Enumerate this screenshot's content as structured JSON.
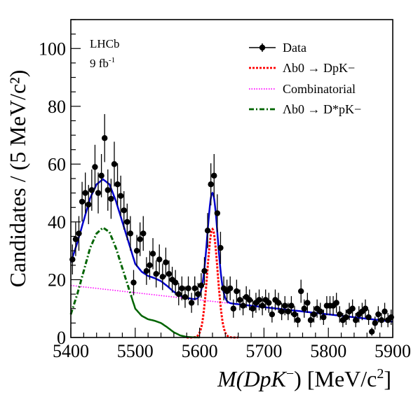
{
  "chart_data": {
    "type": "scatter",
    "experiment_label": "LHCb",
    "luminosity_label": "9 fb",
    "luminosity_exponent": "-1",
    "xlabel": {
      "prefix": "M(DpK",
      "sup": "−",
      "suffix": ") [MeV/c",
      "sup2": "2",
      "end": "]"
    },
    "ylabel": "Candidates / (5 MeV/c²)",
    "xlim": [
      5400,
      5900
    ],
    "ylim": [
      0,
      110
    ],
    "x_ticks": [
      5400,
      5500,
      5600,
      5700,
      5800,
      5900
    ],
    "y_ticks": [
      0,
      20,
      40,
      60,
      80,
      100
    ],
    "legend_position": "top-right",
    "legend": [
      {
        "key": "data",
        "label": "Data",
        "color": "#000000",
        "style": "marker"
      },
      {
        "key": "signal",
        "label": "Λb0 → DpK−",
        "color": "#ff0000",
        "style": "dotted"
      },
      {
        "key": "comb",
        "label": "Combinatorial",
        "color": "#ff00ff",
        "style": "dotted"
      },
      {
        "key": "dstar",
        "label": "Λb0 → D*pK−",
        "color": "#006400",
        "style": "dashdot"
      }
    ],
    "colors": {
      "total": "#0000cc",
      "signal": "#ff0000",
      "combinatorial": "#ff00ff",
      "dstar": "#006400",
      "data": "#000000"
    },
    "data_points": [
      {
        "x": 5402.5,
        "y": 27
      },
      {
        "x": 5407.5,
        "y": 34
      },
      {
        "x": 5412.5,
        "y": 36
      },
      {
        "x": 5417.5,
        "y": 47
      },
      {
        "x": 5422.5,
        "y": 50
      },
      {
        "x": 5427.5,
        "y": 46
      },
      {
        "x": 5432.5,
        "y": 51
      },
      {
        "x": 5437.5,
        "y": 59
      },
      {
        "x": 5442.5,
        "y": 50
      },
      {
        "x": 5447.5,
        "y": 56
      },
      {
        "x": 5452.5,
        "y": 69
      },
      {
        "x": 5457.5,
        "y": 51
      },
      {
        "x": 5462.5,
        "y": 48
      },
      {
        "x": 5467.5,
        "y": 60
      },
      {
        "x": 5472.5,
        "y": 53
      },
      {
        "x": 5477.5,
        "y": 49
      },
      {
        "x": 5482.5,
        "y": 44
      },
      {
        "x": 5487.5,
        "y": 40
      },
      {
        "x": 5492.5,
        "y": 36
      },
      {
        "x": 5497.5,
        "y": 19
      },
      {
        "x": 5502.5,
        "y": 30
      },
      {
        "x": 5507.5,
        "y": 34
      },
      {
        "x": 5512.5,
        "y": 36
      },
      {
        "x": 5517.5,
        "y": 23
      },
      {
        "x": 5522.5,
        "y": 25
      },
      {
        "x": 5527.5,
        "y": 29
      },
      {
        "x": 5532.5,
        "y": 22
      },
      {
        "x": 5537.5,
        "y": 27
      },
      {
        "x": 5542.5,
        "y": 21
      },
      {
        "x": 5547.5,
        "y": 26
      },
      {
        "x": 5552.5,
        "y": 22
      },
      {
        "x": 5557.5,
        "y": 20
      },
      {
        "x": 5562.5,
        "y": 19
      },
      {
        "x": 5567.5,
        "y": 15
      },
      {
        "x": 5572.5,
        "y": 17
      },
      {
        "x": 5577.5,
        "y": 14
      },
      {
        "x": 5582.5,
        "y": 17
      },
      {
        "x": 5587.5,
        "y": 12
      },
      {
        "x": 5592.5,
        "y": 17
      },
      {
        "x": 5597.5,
        "y": 15
      },
      {
        "x": 5602.5,
        "y": 18
      },
      {
        "x": 5607.5,
        "y": 23
      },
      {
        "x": 5612.5,
        "y": 37
      },
      {
        "x": 5617.5,
        "y": 53
      },
      {
        "x": 5622.5,
        "y": 56
      },
      {
        "x": 5627.5,
        "y": 43
      },
      {
        "x": 5632.5,
        "y": 31
      },
      {
        "x": 5637.5,
        "y": 17
      },
      {
        "x": 5642.5,
        "y": 16
      },
      {
        "x": 5647.5,
        "y": 17
      },
      {
        "x": 5652.5,
        "y": 10
      },
      {
        "x": 5657.5,
        "y": 16
      },
      {
        "x": 5662.5,
        "y": 13
      },
      {
        "x": 5667.5,
        "y": 11
      },
      {
        "x": 5672.5,
        "y": 14
      },
      {
        "x": 5677.5,
        "y": 13
      },
      {
        "x": 5682.5,
        "y": 10
      },
      {
        "x": 5687.5,
        "y": 12
      },
      {
        "x": 5692.5,
        "y": 13
      },
      {
        "x": 5697.5,
        "y": 11
      },
      {
        "x": 5702.5,
        "y": 13
      },
      {
        "x": 5707.5,
        "y": 12
      },
      {
        "x": 5712.5,
        "y": 8
      },
      {
        "x": 5717.5,
        "y": 13
      },
      {
        "x": 5722.5,
        "y": 12
      },
      {
        "x": 5727.5,
        "y": 9
      },
      {
        "x": 5732.5,
        "y": 11
      },
      {
        "x": 5737.5,
        "y": 9
      },
      {
        "x": 5742.5,
        "y": 11
      },
      {
        "x": 5747.5,
        "y": 8
      },
      {
        "x": 5752.5,
        "y": 6
      },
      {
        "x": 5757.5,
        "y": 16
      },
      {
        "x": 5762.5,
        "y": 10
      },
      {
        "x": 5767.5,
        "y": 12
      },
      {
        "x": 5772.5,
        "y": 6
      },
      {
        "x": 5777.5,
        "y": 8
      },
      {
        "x": 5782.5,
        "y": 10
      },
      {
        "x": 5787.5,
        "y": 9
      },
      {
        "x": 5792.5,
        "y": 7
      },
      {
        "x": 5797.5,
        "y": 11
      },
      {
        "x": 5802.5,
        "y": 11
      },
      {
        "x": 5807.5,
        "y": 11
      },
      {
        "x": 5812.5,
        "y": 12
      },
      {
        "x": 5817.5,
        "y": 8
      },
      {
        "x": 5822.5,
        "y": 6
      },
      {
        "x": 5827.5,
        "y": 7
      },
      {
        "x": 5832.5,
        "y": 9
      },
      {
        "x": 5837.5,
        "y": 10
      },
      {
        "x": 5842.5,
        "y": 6
      },
      {
        "x": 5847.5,
        "y": 8
      },
      {
        "x": 5852.5,
        "y": 9
      },
      {
        "x": 5857.5,
        "y": 10
      },
      {
        "x": 5862.5,
        "y": 7
      },
      {
        "x": 5867.5,
        "y": 2
      },
      {
        "x": 5872.5,
        "y": 5
      },
      {
        "x": 5877.5,
        "y": 8
      },
      {
        "x": 5882.5,
        "y": 6
      },
      {
        "x": 5887.5,
        "y": 9
      },
      {
        "x": 5892.5,
        "y": 6
      },
      {
        "x": 5897.5,
        "y": 7
      }
    ],
    "fit_model": {
      "combinatorial": {
        "at_xmin": 18.0,
        "at_xmax": 5.5
      },
      "signal": {
        "amplitude": 37.5,
        "mean": 5620,
        "sigma": 8.0
      },
      "dstar": {
        "x": [
          5400,
          5410,
          5420,
          5430,
          5440,
          5450,
          5460,
          5470,
          5480,
          5490,
          5500,
          5510,
          5520,
          5530,
          5540,
          5550,
          5560,
          5570,
          5580,
          5590,
          5600
        ],
        "y": [
          8,
          15,
          23,
          31,
          36,
          38,
          36.5,
          31,
          24,
          17,
          10,
          7.5,
          6.3,
          5.8,
          5,
          3.5,
          1.8,
          0.7,
          0.2,
          0.05,
          0
        ]
      }
    }
  }
}
